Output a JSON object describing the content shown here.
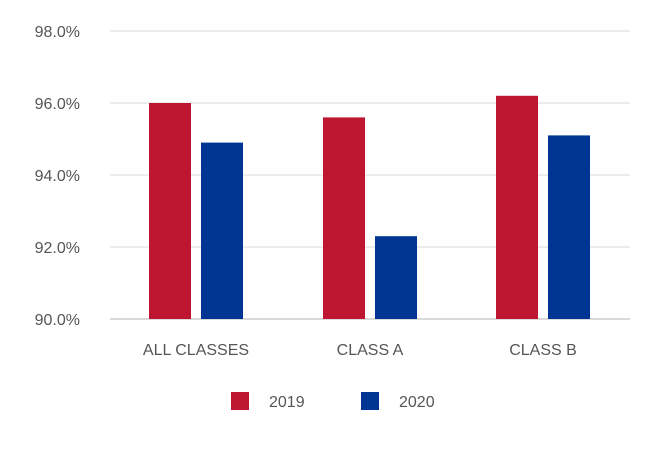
{
  "chart_data": {
    "type": "bar",
    "title": "",
    "xlabel": "",
    "ylabel": "",
    "categories": [
      "ALL CLASSES",
      "CLASS A",
      "CLASS B"
    ],
    "series": [
      {
        "name": "2019",
        "color": "#BE1530",
        "values": [
          96.0,
          95.6,
          96.2
        ]
      },
      {
        "name": "2020",
        "color": "#003593",
        "values": [
          94.9,
          92.3,
          95.1
        ]
      }
    ],
    "ylim": [
      90,
      98
    ],
    "yticks": [
      90,
      92,
      94,
      96,
      98
    ],
    "ytick_labels": [
      "90.0%",
      "92.0%",
      "94.0%",
      "96.0%",
      "98.0%"
    ],
    "grid": true,
    "legend_position": "bottom"
  }
}
